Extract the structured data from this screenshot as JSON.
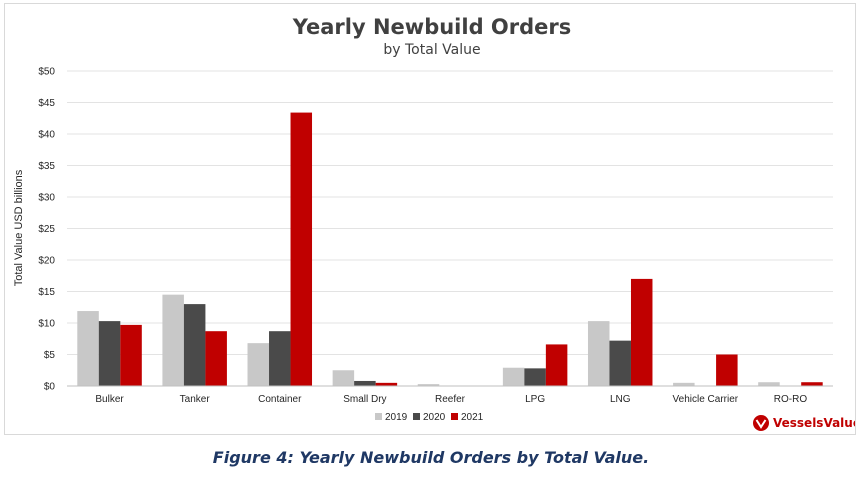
{
  "chart_data": {
    "type": "bar",
    "title": "Yearly Newbuild Orders",
    "subtitle": "by Total Value",
    "ylabel": "Total Value USD billions",
    "xlabel": "",
    "ylim": [
      0,
      50
    ],
    "yticks": [
      "$0",
      "$5",
      "$10",
      "$15",
      "$20",
      "$25",
      "$30",
      "$35",
      "$40",
      "$45",
      "$50"
    ],
    "ytick_values": [
      0,
      5,
      10,
      15,
      20,
      25,
      30,
      35,
      40,
      45,
      50
    ],
    "categories": [
      "Bulker",
      "Tanker",
      "Container",
      "Small Dry",
      "Reefer",
      "LPG",
      "LNG",
      "Vehicle Carrier",
      "RO-RO"
    ],
    "series": [
      {
        "name": "2019",
        "color": "#c8c8c8",
        "values": [
          11.9,
          14.5,
          6.8,
          2.5,
          0.3,
          2.9,
          10.3,
          0.5,
          0.6
        ]
      },
      {
        "name": "2020",
        "color": "#4a4a4a",
        "values": [
          10.3,
          13.0,
          8.7,
          0.8,
          0.0,
          2.8,
          7.2,
          0.0,
          0.0
        ]
      },
      {
        "name": "2021",
        "color": "#c00000",
        "values": [
          9.7,
          8.7,
          43.4,
          0.5,
          0.0,
          6.6,
          17.0,
          5.0,
          0.6
        ]
      }
    ],
    "grid": true,
    "legend_position": "bottom"
  },
  "brand": {
    "name": "VesselsValue",
    "color": "#c00000"
  },
  "caption": "Figure 4: Yearly Newbuild Orders by Total Value."
}
